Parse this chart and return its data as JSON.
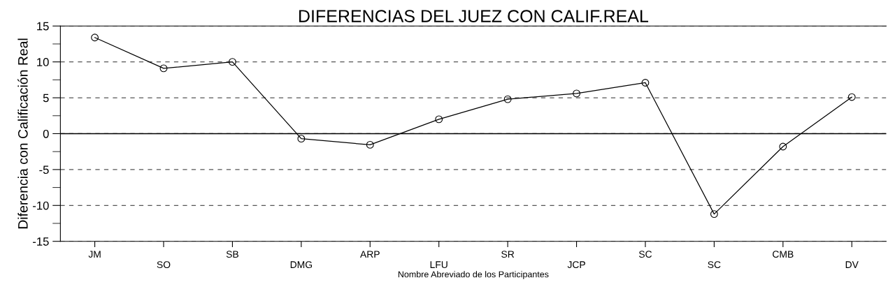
{
  "chart_data": {
    "type": "line",
    "title": "DIFERENCIAS DEL JUEZ CON CALIF.REAL",
    "xlabel": "Nombre Abreviado de los Participantes",
    "ylabel": "Diferencia con Calificación Real",
    "categories": [
      "JM",
      "SO",
      "SB",
      "DMG",
      "ARP",
      "LFU",
      "SR",
      "JCP",
      "SC",
      "SC",
      "CMB",
      "DV"
    ],
    "series": [
      {
        "color": "#000000",
        "values": [
          13.4,
          9.1,
          10.0,
          -0.7,
          -1.55,
          2.0,
          4.8,
          5.6,
          7.1,
          -11.2,
          -1.8,
          5.1
        ]
      }
    ],
    "ylim": [
      -15,
      15
    ],
    "yticks": [
      -15,
      -10,
      -5,
      0,
      5,
      10,
      15
    ],
    "ref_lines": [
      {
        "axis": "y",
        "value": 0,
        "color": "#000000",
        "line_style": "solid"
      }
    ],
    "grid": "y",
    "marker": "circle",
    "line_style": "solid",
    "legend": false
  }
}
